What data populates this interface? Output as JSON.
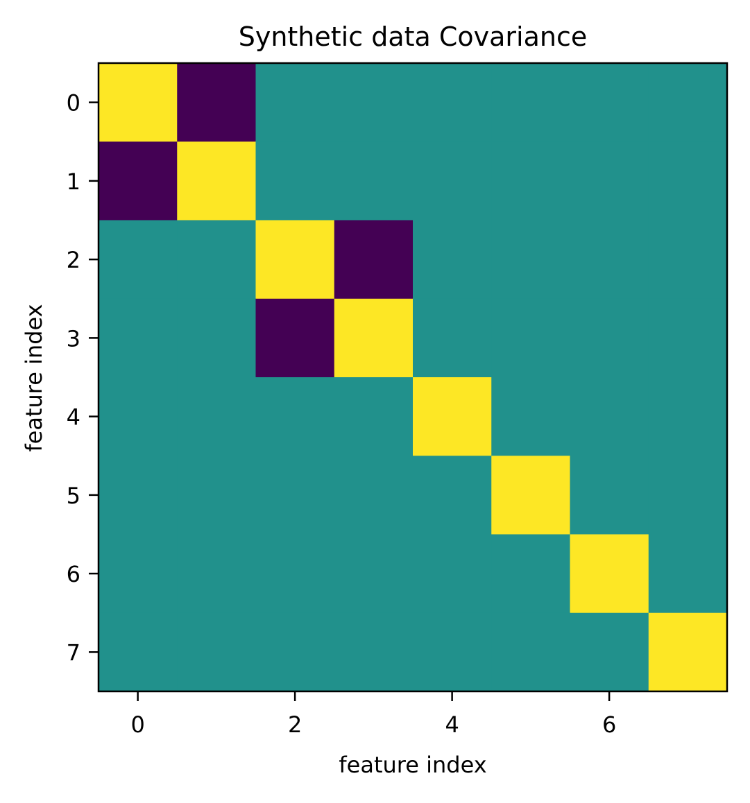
{
  "chart_data": {
    "type": "heatmap",
    "title": "Synthetic data Covariance",
    "xlabel": "feature index",
    "ylabel": "feature index",
    "x_ticks": [
      0,
      2,
      4,
      6
    ],
    "y_ticks": [
      0,
      1,
      2,
      3,
      4,
      5,
      6,
      7
    ],
    "x_tick_labels": [
      "0",
      "2",
      "4",
      "6"
    ],
    "y_tick_labels": [
      "0",
      "1",
      "2",
      "3",
      "4",
      "5",
      "6",
      "7"
    ],
    "xlim": [
      -0.5,
      7.5
    ],
    "ylim": [
      7.5,
      -0.5
    ],
    "colormap": "viridis",
    "vmin": -1,
    "vmax": 1,
    "grid": false,
    "colorbar": false,
    "rows": 8,
    "cols": 8,
    "values": [
      [
        1,
        -1,
        0,
        0,
        0,
        0,
        0,
        0
      ],
      [
        -1,
        1,
        0,
        0,
        0,
        0,
        0,
        0
      ],
      [
        0,
        0,
        1,
        -1,
        0,
        0,
        0,
        0
      ],
      [
        0,
        0,
        -1,
        1,
        0,
        0,
        0,
        0
      ],
      [
        0,
        0,
        0,
        0,
        1,
        0,
        0,
        0
      ],
      [
        0,
        0,
        0,
        0,
        0,
        1,
        0,
        0
      ],
      [
        0,
        0,
        0,
        0,
        0,
        0,
        1,
        0
      ],
      [
        0,
        0,
        0,
        0,
        0,
        0,
        0,
        1
      ]
    ],
    "colors": {
      "high": "#fde725",
      "mid": "#21918c",
      "low": "#440154"
    }
  }
}
